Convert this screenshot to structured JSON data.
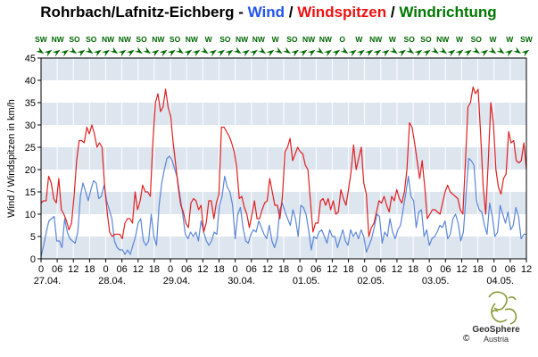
{
  "chart_data": {
    "type": "line",
    "title": {
      "station": "Rohrbach/Lafnitz-Eichberg",
      "sep1": " - ",
      "wind": "Wind",
      "sep2": " / ",
      "gusts": "Windspitzen",
      "sep3": " / ",
      "direction": "Windrichtung"
    },
    "ylabel": "Wind / Windspitzen in km/h",
    "ylim": [
      0,
      45
    ],
    "yticks": [
      0,
      5,
      10,
      15,
      20,
      25,
      30,
      35,
      40,
      45
    ],
    "xlim": [
      0,
      186
    ],
    "hour_ticks": [
      "0",
      "06",
      "12",
      "18",
      "0",
      "06",
      "12",
      "18",
      "0",
      "06",
      "12",
      "18",
      "0",
      "06",
      "12",
      "18",
      "0",
      "06",
      "12",
      "18",
      "0",
      "06",
      "12",
      "18",
      "0",
      "06",
      "12",
      "18",
      "0",
      "06",
      "12"
    ],
    "date_labels": [
      "27.04.",
      "28.04.",
      "29.04.",
      "30.04.",
      "01.05.",
      "02.05.",
      "03.05.",
      "04.05."
    ],
    "directions": [
      "SW",
      "NW",
      "SO",
      "SO",
      "NW",
      "NW",
      "SO",
      "NW",
      "SO",
      "NW",
      "W",
      "SO",
      "NW",
      "NW",
      "W",
      "SO",
      "NW",
      "NW",
      "O",
      "W",
      "NW",
      "W",
      "SO",
      "SO",
      "NW",
      "W",
      "SO",
      "W",
      "W",
      "SW"
    ],
    "direction_arrow_angles": [
      35,
      -35,
      -35,
      -35,
      35,
      -35,
      35,
      -35,
      -35,
      35,
      -35,
      -35,
      35,
      35,
      -35,
      -35,
      -35,
      35,
      -35,
      -35,
      35,
      -35,
      -35,
      -35,
      35,
      -35,
      -35,
      35,
      -35,
      35,
      35,
      -35,
      -35,
      -35,
      35,
      -35,
      -35,
      35,
      -35,
      -35,
      -35,
      -35,
      -35,
      35,
      -35,
      35,
      -35,
      -35,
      35,
      35,
      -35,
      -35,
      -35,
      35,
      -35,
      35,
      35,
      -35,
      35,
      -35
    ],
    "colors": {
      "wind": "#5b86d8",
      "gusts": "#e02020",
      "direction": "#006600",
      "band": "#dde5ef",
      "grid": "#ffffff"
    },
    "series": [
      {
        "key": "wind",
        "values": [
          0.5,
          3,
          6,
          8.5,
          9,
          9.5,
          4,
          4,
          2.5,
          9,
          6,
          4.5,
          4,
          3.5,
          6,
          14,
          17,
          15,
          13,
          15.5,
          17.5,
          17,
          13.5,
          14,
          16.5,
          13,
          11,
          9,
          4,
          2.5,
          2,
          2,
          1,
          2,
          1,
          3,
          5,
          8,
          9,
          4,
          3,
          4,
          10,
          5,
          3,
          12,
          17,
          20,
          22.5,
          23,
          22,
          20,
          18,
          14,
          10,
          5.5,
          4.5,
          6,
          5,
          6,
          4,
          8.5,
          6,
          4,
          3,
          4,
          6,
          5.5,
          12,
          14,
          18.5,
          16,
          15,
          12,
          4.5,
          10,
          11.5,
          7,
          4,
          3.5,
          5.5,
          6.5,
          6,
          8.5,
          7,
          5.5,
          4.5,
          7.5,
          4,
          2.5,
          4.5,
          11,
          12.5,
          10.5,
          9,
          7.5,
          11,
          9,
          5,
          12,
          11.5,
          10,
          6.5,
          2,
          5,
          4.5,
          6,
          6.5,
          5,
          3.5,
          6.5,
          5,
          5,
          2.5,
          4.5,
          6.5,
          4,
          3,
          6.5,
          5,
          6,
          4.5,
          6.5,
          5,
          1.5,
          3,
          4.5,
          7,
          10,
          9.5,
          3.5,
          6,
          5,
          9,
          6,
          4.5,
          6.5,
          7.5,
          11,
          14.5,
          18.5,
          14,
          13,
          7,
          10.5,
          11,
          5,
          6.5,
          3,
          4.5,
          5,
          6,
          7.5,
          7,
          8.5,
          4.5,
          5.5,
          9,
          10,
          8,
          4,
          6,
          14.5,
          22.5,
          22,
          21,
          13,
          11,
          10.5,
          7.5,
          5.5,
          12.5,
          9.5,
          5,
          6,
          12,
          10,
          8,
          10.5,
          6.5,
          7.5,
          11.5,
          9.5,
          4.5,
          5.5,
          5.5
        ]
      },
      {
        "key": "gusts",
        "values": [
          12.5,
          13,
          13,
          18.5,
          17,
          13.5,
          12.5,
          18,
          11,
          10,
          8.5,
          6.5,
          8,
          14,
          22,
          26.5,
          26.5,
          26,
          29.5,
          28,
          30,
          28,
          25,
          26,
          25,
          16.5,
          10.5,
          6,
          5,
          5.5,
          5.5,
          5.5,
          4.5,
          8,
          9,
          9,
          8,
          15,
          11,
          13,
          16.5,
          15,
          15,
          14,
          26,
          35,
          37,
          33,
          34,
          38,
          34,
          32,
          26,
          21,
          16,
          12,
          10.5,
          8,
          7,
          12.5,
          13.5,
          13,
          11,
          12,
          6,
          8,
          13,
          13,
          9,
          12.5,
          14.5,
          29.5,
          29.5,
          28.5,
          27.5,
          26,
          24,
          20.5,
          13.5,
          14,
          11.5,
          10,
          7,
          10,
          13,
          9,
          9,
          11,
          12.5,
          13,
          18,
          15,
          12,
          12,
          9,
          14,
          24,
          25,
          27,
          22,
          23.5,
          25,
          24,
          23.5,
          21,
          20,
          13,
          6,
          8,
          8,
          13,
          13.5,
          12,
          13.5,
          11,
          13,
          10,
          10.5,
          15.5,
          13.5,
          12,
          15.5,
          19.5,
          25.5,
          20,
          22.5,
          25,
          17,
          14.5,
          5,
          7,
          8,
          10.5,
          13,
          12.5,
          14,
          12,
          10.5,
          14,
          13,
          15.5,
          13.5,
          12.5,
          15,
          20,
          30.5,
          29.5,
          26,
          22,
          18,
          22,
          16,
          9,
          10,
          11,
          11,
          10.5,
          10,
          12.5,
          15,
          16.5,
          15,
          14.5,
          14,
          13.5,
          11,
          10,
          21.5,
          34,
          35,
          38.5,
          37,
          38,
          28,
          16,
          10,
          22,
          35,
          30.5,
          20,
          16,
          14.5,
          18,
          19,
          28.5,
          26,
          26.5,
          22,
          21.5,
          22,
          26,
          20
        ]
      }
    ]
  },
  "brand": {
    "name": "GeoSphere",
    "country": "Austria",
    "copyright": "©"
  }
}
